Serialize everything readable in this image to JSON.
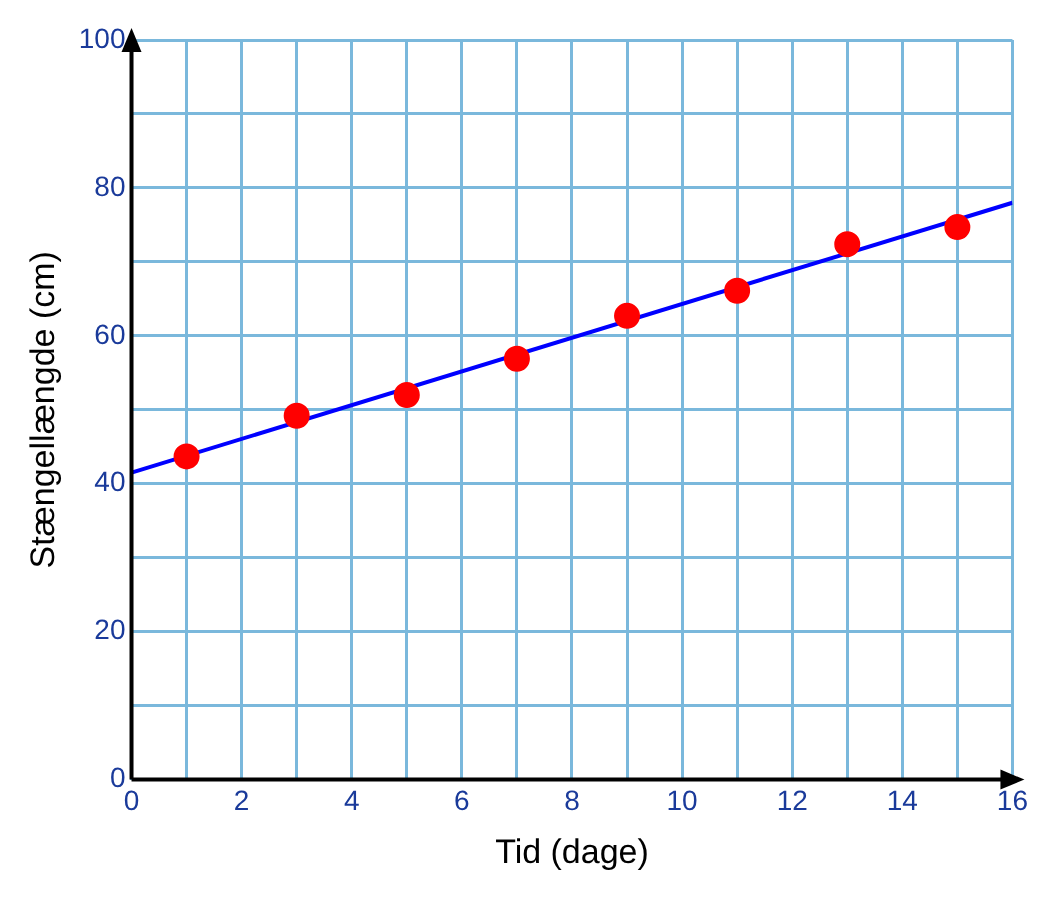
{
  "chart_data": {
    "type": "scatter",
    "xlabel": "Tid (dage)",
    "ylabel": "Stængellængde (cm)",
    "series": [
      {
        "color": "#ff0000",
        "x": [
          1,
          3,
          5,
          7,
          9,
          11,
          13,
          15
        ],
        "values": [
          43.7,
          49.2,
          52,
          56.9,
          62.7,
          66.1,
          72.4,
          74.7
        ],
        "marker": "circle"
      },
      {
        "type": "line",
        "color": "#0000ff",
        "x": [
          0,
          16
        ],
        "values": [
          41.5,
          78
        ],
        "marker": "none"
      }
    ],
    "xlim": [
      0,
      16
    ],
    "ylim": [
      0,
      100
    ],
    "xticks": [
      0,
      {
        "value": 1,
        "label": null
      },
      2,
      {
        "value": 3,
        "label": null
      },
      4,
      {
        "value": 5,
        "label": null
      },
      6,
      {
        "value": 7,
        "label": null
      },
      8,
      {
        "value": 9,
        "label": null
      },
      10,
      {
        "value": 11,
        "label": null
      },
      12,
      {
        "value": 13,
        "label": null
      },
      14,
      {
        "value": 15,
        "label": null
      },
      16
    ],
    "yticks": [
      0,
      {
        "value": 10,
        "label": null
      },
      20,
      {
        "value": 30,
        "label": null
      },
      40,
      {
        "value": 50,
        "label": null
      },
      60,
      {
        "value": 70,
        "label": null
      },
      80,
      {
        "value": 90,
        "label": null
      },
      100
    ],
    "grid": true,
    "legend": false
  }
}
